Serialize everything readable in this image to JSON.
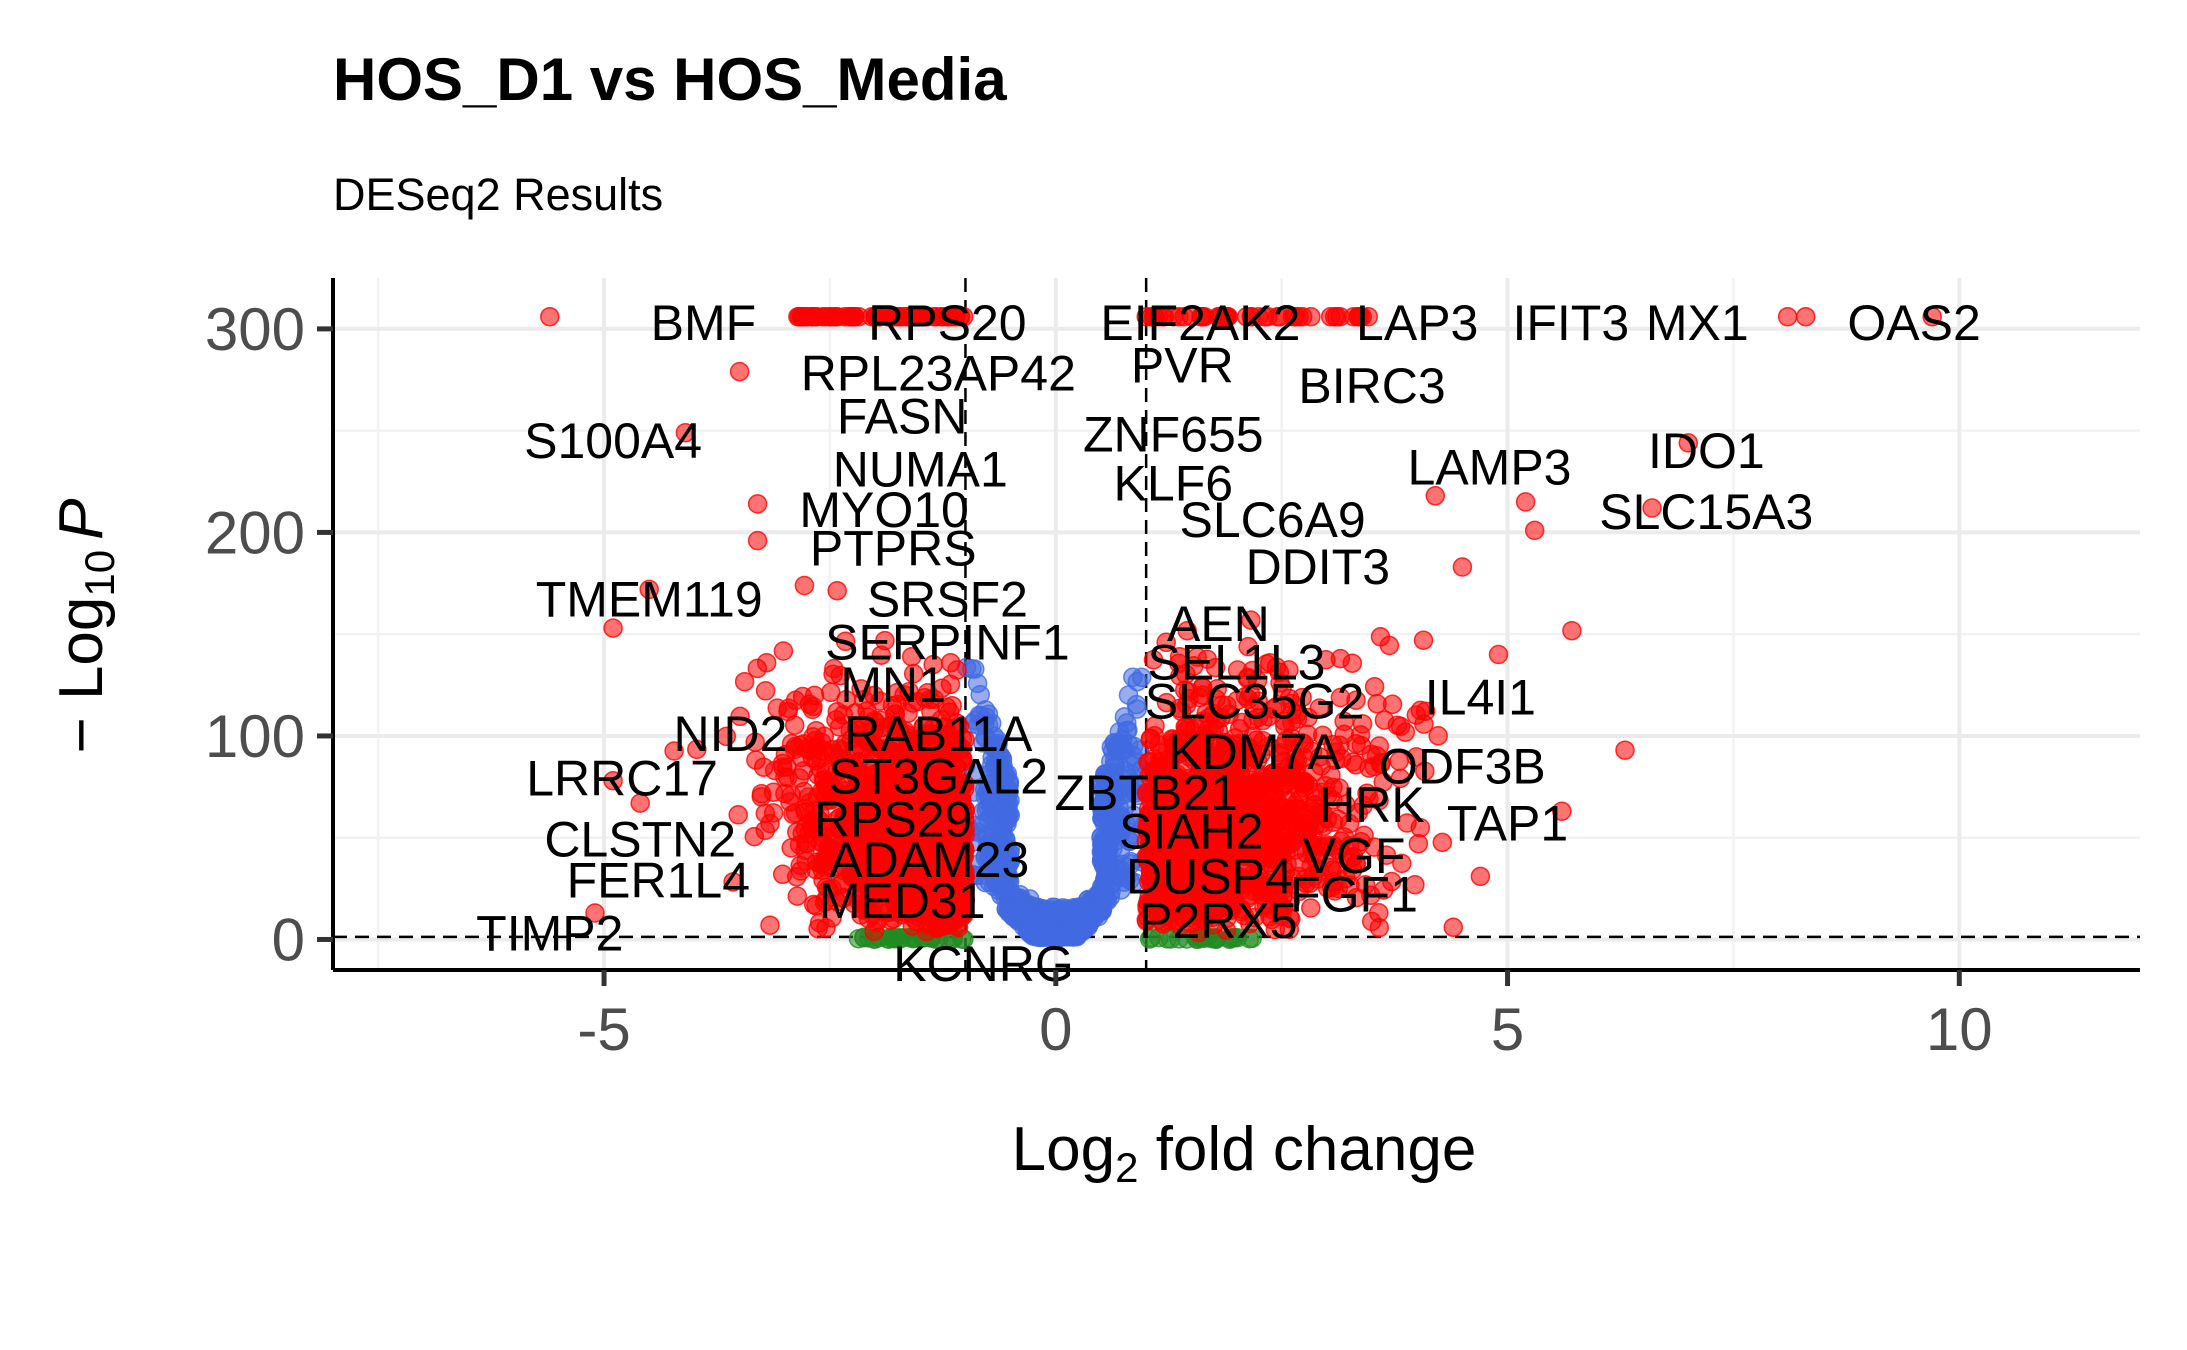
{
  "chart_data": {
    "type": "scatter",
    "title": "HOS_D1 vs HOS_Media",
    "subtitle": "DESeq2 Results",
    "xlabel_main": "Log",
    "xlabel_sub": "2",
    "xlabel_rest": " fold change",
    "ylabel_prefix": "− Log",
    "ylabel_sub": "10",
    "ylabel_var": "P",
    "xlim": [
      -8,
      12
    ],
    "ylim": [
      -15,
      325
    ],
    "x_ticks": [
      -5,
      0,
      5,
      10
    ],
    "x_tick_labels": [
      "-5",
      "0",
      "5",
      "10"
    ],
    "y_ticks": [
      0,
      100,
      200,
      300
    ],
    "y_tick_labels": [
      "0",
      "100",
      "200",
      "300"
    ],
    "fc_cutoff": 1,
    "p_cutoff_neglog10": 1.3,
    "grid": true,
    "legend": "none",
    "colors": {
      "ns": "#404040",
      "log2fc": "#228b22",
      "p": "#4169e1",
      "p_and_log2fc": "#ff0000"
    },
    "series": [
      {
        "values": []
      },
      {
        "values": []
      },
      {
        "values": []
      },
      {
        "values": []
      }
    ],
    "labels": [
      {
        "text": "BMF",
        "x": -3.9,
        "y": 303
      },
      {
        "text": "RPS20",
        "x": -1.2,
        "y": 303
      },
      {
        "text": "EIF2AK2",
        "x": 1.6,
        "y": 303
      },
      {
        "text": "LAP3",
        "x": 4.0,
        "y": 303
      },
      {
        "text": "IFIT3",
        "x": 5.7,
        "y": 303
      },
      {
        "text": "MX1",
        "x": 7.1,
        "y": 303
      },
      {
        "text": "OAS2",
        "x": 9.5,
        "y": 303
      },
      {
        "text": "RPL23AP42",
        "x": -1.3,
        "y": 278
      },
      {
        "text": "PVR",
        "x": 1.4,
        "y": 282
      },
      {
        "text": "BIRC3",
        "x": 3.5,
        "y": 272
      },
      {
        "text": "FASN",
        "x": -1.7,
        "y": 257
      },
      {
        "text": "ZNF655",
        "x": 1.3,
        "y": 248
      },
      {
        "text": "S100A4",
        "x": -4.9,
        "y": 245
      },
      {
        "text": "IDO1",
        "x": 7.2,
        "y": 240
      },
      {
        "text": "NUMA1",
        "x": -1.5,
        "y": 231
      },
      {
        "text": "LAMP3",
        "x": 4.8,
        "y": 232
      },
      {
        "text": "KLF6",
        "x": 1.3,
        "y": 224
      },
      {
        "text": "MYO10",
        "x": -1.9,
        "y": 211
      },
      {
        "text": "SLC6A9",
        "x": 2.4,
        "y": 206
      },
      {
        "text": "SLC15A3",
        "x": 7.2,
        "y": 210
      },
      {
        "text": "PTPRS",
        "x": -1.8,
        "y": 192
      },
      {
        "text": "DDIT3",
        "x": 2.9,
        "y": 183
      },
      {
        "text": "TMEM119",
        "x": -4.5,
        "y": 167
      },
      {
        "text": "SRSF2",
        "x": -1.2,
        "y": 167
      },
      {
        "text": "AEN",
        "x": 1.8,
        "y": 155
      },
      {
        "text": "SERPINF1",
        "x": -1.2,
        "y": 146
      },
      {
        "text": "SEL1L3",
        "x": 2.0,
        "y": 136
      },
      {
        "text": "MN1",
        "x": -1.8,
        "y": 125
      },
      {
        "text": "SLC35G2",
        "x": 2.2,
        "y": 117
      },
      {
        "text": "IL4I1",
        "x": 4.7,
        "y": 119
      },
      {
        "text": "NID2",
        "x": -3.6,
        "y": 101
      },
      {
        "text": "RAB11A",
        "x": -1.3,
        "y": 101
      },
      {
        "text": "KDM7A",
        "x": 2.2,
        "y": 92
      },
      {
        "text": "ODF3B",
        "x": 4.5,
        "y": 85
      },
      {
        "text": "LRRC17",
        "x": -4.8,
        "y": 79
      },
      {
        "text": "ST3GAL2",
        "x": -1.3,
        "y": 80
      },
      {
        "text": "ZBTB21",
        "x": 1.0,
        "y": 72
      },
      {
        "text": "HRK",
        "x": 3.5,
        "y": 66
      },
      {
        "text": "TAP1",
        "x": 5.0,
        "y": 57
      },
      {
        "text": "RPS29",
        "x": -1.8,
        "y": 59
      },
      {
        "text": "CLSTN2",
        "x": -4.6,
        "y": 49
      },
      {
        "text": "SIAH2",
        "x": 1.5,
        "y": 53
      },
      {
        "text": "ADAM23",
        "x": -1.4,
        "y": 39
      },
      {
        "text": "VGF",
        "x": 3.3,
        "y": 41
      },
      {
        "text": "DUSP4",
        "x": 1.7,
        "y": 31
      },
      {
        "text": "FER1L4",
        "x": -4.4,
        "y": 29
      },
      {
        "text": "FGF1",
        "x": 3.3,
        "y": 22
      },
      {
        "text": "MED31",
        "x": -1.7,
        "y": 19
      },
      {
        "text": "P2RX5",
        "x": 1.8,
        "y": 9
      },
      {
        "text": "TIMP2",
        "x": -5.6,
        "y": 3
      },
      {
        "text": "KCNRG",
        "x": -0.8,
        "y": -12
      }
    ]
  }
}
